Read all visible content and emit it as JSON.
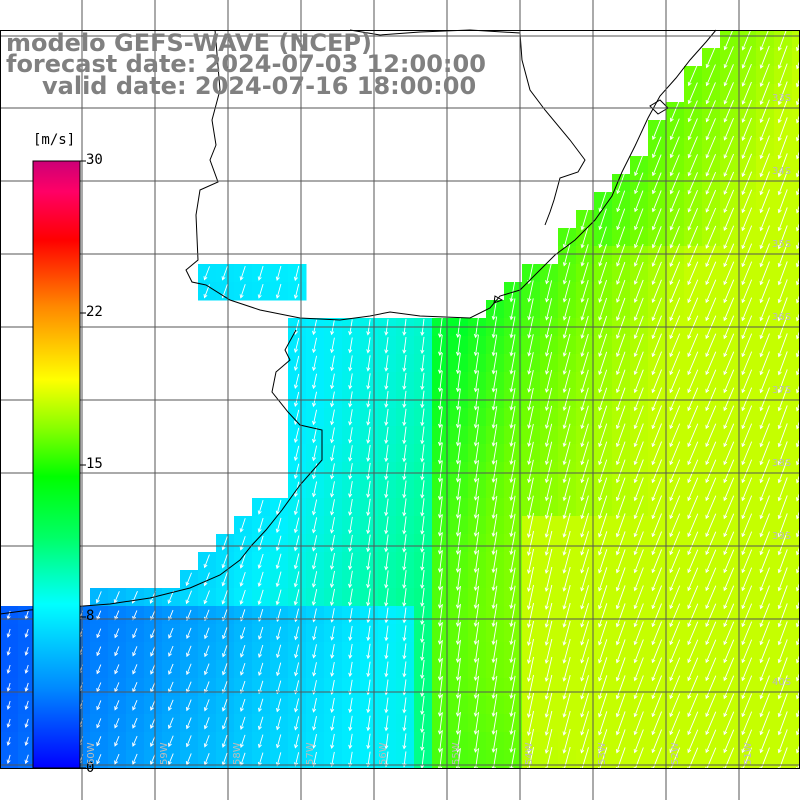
{
  "header": {
    "line1": "modelo GEFS-WAVE (NCEP)",
    "line2": "forecast date: 2024-07-03 12:00:00",
    "line3": "valid date: 2024-07-16 18:00:00"
  },
  "colorbar": {
    "unit": "[m/s]",
    "ticks": [
      "30",
      "22",
      "15",
      "8",
      "0"
    ],
    "gradient_colors": [
      "#0000ff",
      "#0088ff",
      "#00ffff",
      "#00ff66",
      "#00ff00",
      "#88ff00",
      "#ffff00",
      "#ff8800",
      "#ff0000",
      "#ff0066",
      "#cc0077"
    ]
  },
  "axes": {
    "lon_labels": [
      "60W",
      "59W",
      "58W",
      "57W",
      "56W",
      "55W",
      "54W",
      "53W",
      "52W",
      "51W"
    ],
    "lat_labels": [
      "33S",
      "34S",
      "35S",
      "36S",
      "37S",
      "38S",
      "39S",
      "40S"
    ]
  },
  "icons": {
    "arrow": "wind-arrow-icon"
  }
}
